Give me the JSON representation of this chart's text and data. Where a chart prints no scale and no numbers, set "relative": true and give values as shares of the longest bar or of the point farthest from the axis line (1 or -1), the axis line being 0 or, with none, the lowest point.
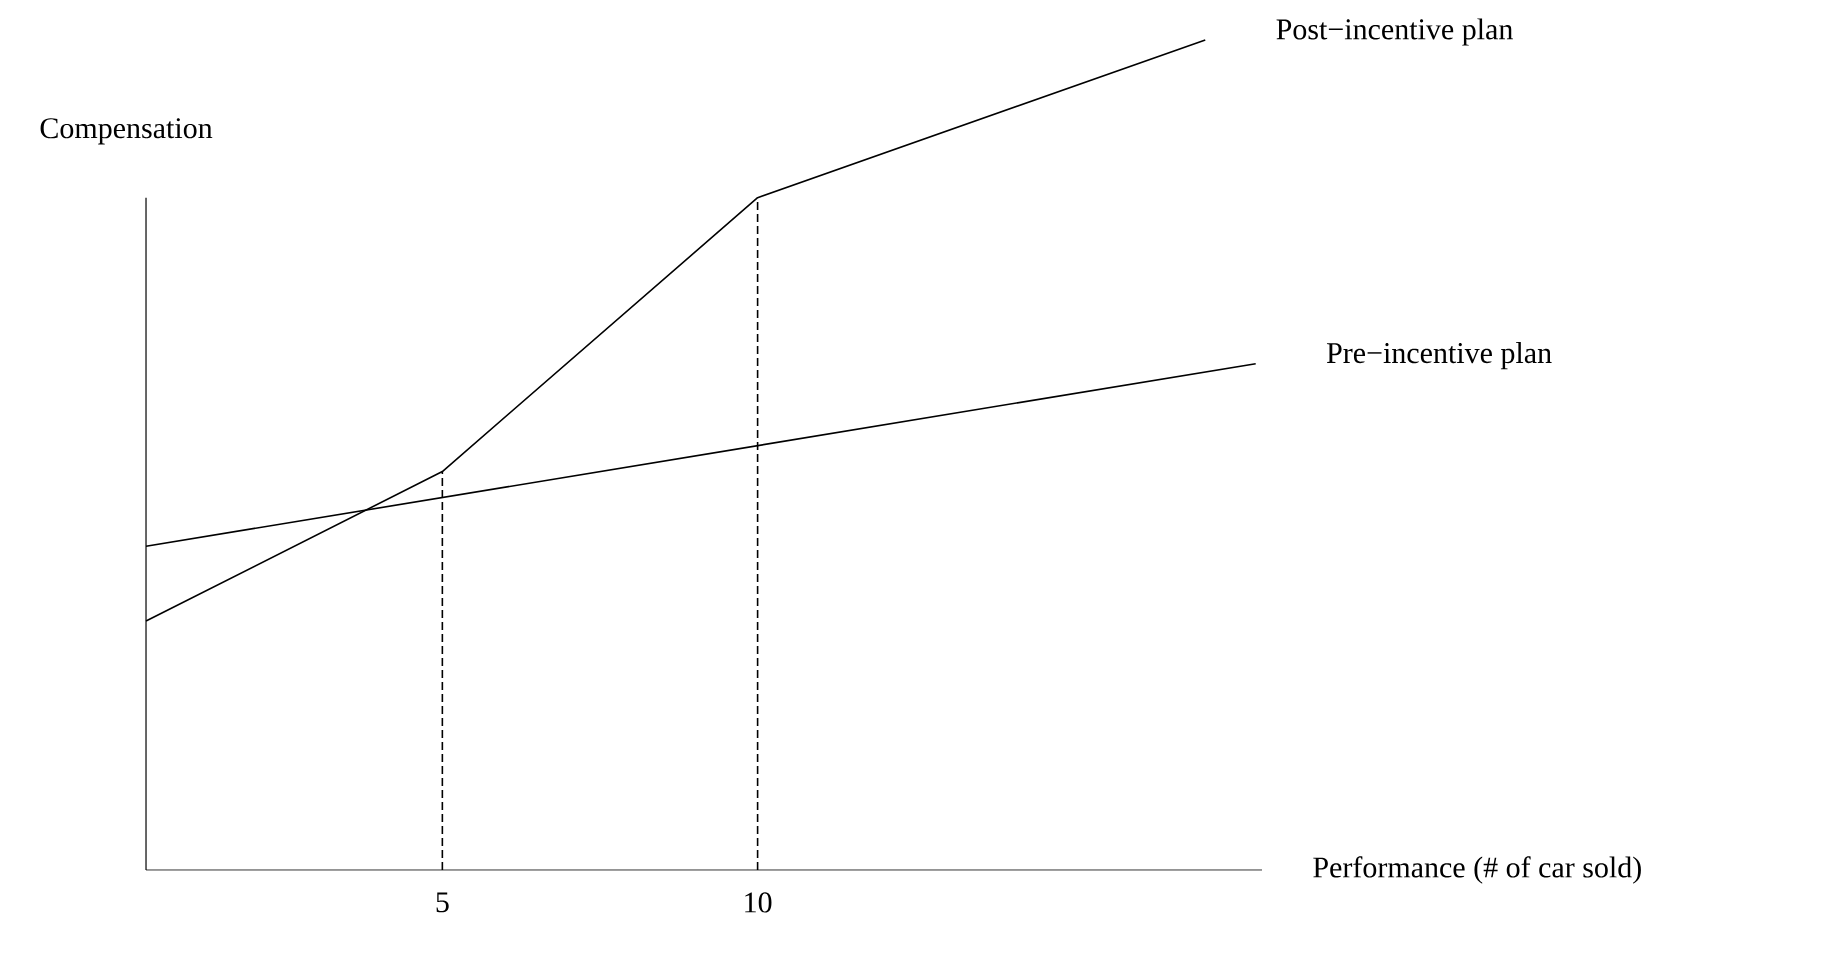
{
  "chart_data": {
    "type": "line",
    "xlabel": "Performance (# of car sold)",
    "ylabel": "Compensation",
    "relative": true,
    "x": [
      0.3,
      5,
      10,
      17.1
    ],
    "xlim": [
      0.3,
      18
    ],
    "xticks": [
      5,
      10
    ],
    "legend": false,
    "grid": false,
    "marker": "none",
    "series": [
      {
        "name": "Post−incentive plan",
        "color": "#000000",
        "values": [
          0.3,
          0.48,
          0.81,
          1.0
        ],
        "line_style": "solid"
      },
      {
        "name": "Pre−incentive plan",
        "color": "#000000",
        "x": [
          0.3,
          17.9
        ],
        "values": [
          0.39,
          0.61
        ],
        "line_style": "solid"
      }
    ],
    "ref_lines": [
      {
        "axis": "x",
        "value": 5,
        "color": "#000000",
        "line_style": "dashed"
      },
      {
        "axis": "x",
        "value": 10,
        "color": "#000000",
        "line_style": "dashed"
      }
    ]
  }
}
